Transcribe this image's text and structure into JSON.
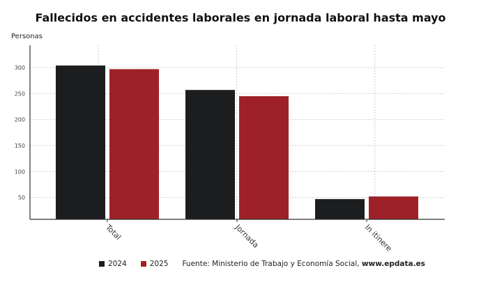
{
  "chart_data": {
    "type": "bar",
    "title": "Fallecidos en accidentes laborales en jornada laboral hasta mayo",
    "ylabel": "Personas",
    "xlabel": "",
    "categories": [
      "Total",
      "Jornada",
      "In itinere"
    ],
    "series": [
      {
        "name": "2024",
        "color": "#1c1d1f",
        "values": [
          304,
          257,
          47
        ]
      },
      {
        "name": "2025",
        "color": "#9e2128",
        "values": [
          297,
          245,
          52
        ]
      }
    ],
    "ylim": [
      8,
      343
    ],
    "yticks": [
      50,
      100,
      150,
      200,
      250,
      300
    ],
    "grid": true,
    "legend": "bottom"
  },
  "source": {
    "prefix": "Fuente: Ministerio de Trabajo y Economía Social,",
    "site": "www.epdata.es"
  }
}
